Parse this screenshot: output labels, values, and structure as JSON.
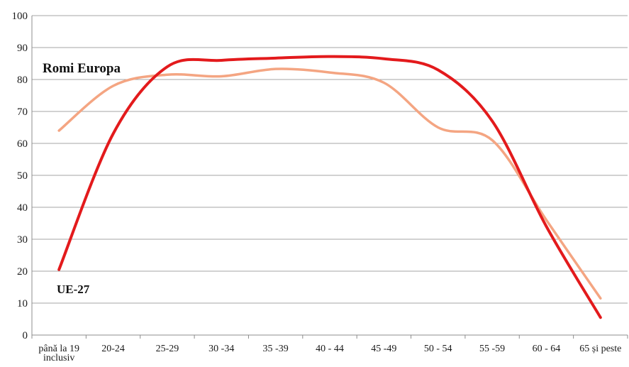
{
  "chart_data": {
    "type": "line",
    "categories": [
      "până la 19 inclusiv",
      "20-24",
      "25-29",
      "30-34",
      "35-39",
      "40-44",
      "45-49",
      "50-54",
      "55-59",
      "60-64",
      "65 și peste"
    ],
    "category_display": [
      [
        "până la 19",
        "inclusiv"
      ],
      [
        "20-24"
      ],
      [
        "25-29"
      ],
      [
        "30 -34"
      ],
      [
        "35 -39"
      ],
      [
        "40 - 44"
      ],
      [
        "45 -49"
      ],
      [
        "50 - 54"
      ],
      [
        "55 -59"
      ],
      [
        "60 - 64"
      ],
      [
        "65 și peste"
      ]
    ],
    "series": [
      {
        "name": "Romi Europa",
        "color": "#f4a582",
        "values": [
          64,
          78,
          81.5,
          81,
          83.3,
          82.2,
          79,
          65,
          61,
          36,
          11.5
        ]
      },
      {
        "name": "UE-27",
        "color": "#e31a1c",
        "values": [
          20.5,
          63,
          84,
          86,
          86.7,
          87.2,
          86.5,
          83,
          67,
          34,
          5.5
        ]
      }
    ],
    "ylim": [
      0,
      100
    ],
    "yticks": [
      0,
      10,
      20,
      30,
      40,
      50,
      60,
      70,
      80,
      90,
      100
    ],
    "grid": true
  }
}
